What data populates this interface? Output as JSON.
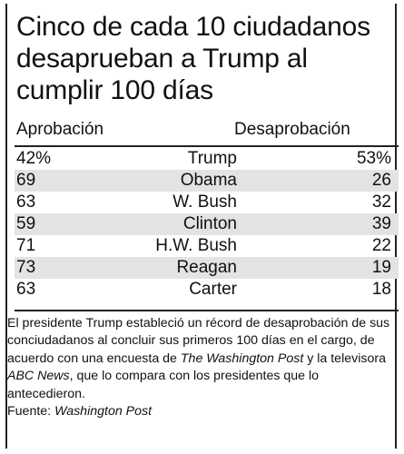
{
  "title": "Cinco de cada 10 ciudadanos desaprueban a Trump al cumplir 100 días",
  "headers": {
    "left": "Aprobación",
    "right": "Desaprobación"
  },
  "chart_data": {
    "type": "table",
    "title": "Cinco de cada 10 ciudadanos desaprueban a Trump al cumplir 100 días",
    "columns": [
      "Aprobación",
      "",
      "Desaprobación"
    ],
    "rows": [
      {
        "aprobacion": "42%",
        "presidente": "Trump",
        "desaprobacion": "53%"
      },
      {
        "aprobacion": "69",
        "presidente": "Obama",
        "desaprobacion": "26"
      },
      {
        "aprobacion": "63",
        "presidente": "W. Bush",
        "desaprobacion": "32"
      },
      {
        "aprobacion": "59",
        "presidente": "Clinton",
        "desaprobacion": "39"
      },
      {
        "aprobacion": "71",
        "presidente": "H.W. Bush",
        "desaprobacion": "22"
      },
      {
        "aprobacion": "73",
        "presidente": "Reagan",
        "desaprobacion": "19"
      },
      {
        "aprobacion": "63",
        "presidente": "Carter",
        "desaprobacion": "18"
      }
    ]
  },
  "note": {
    "part1": "El presidente Trump estableció un récord de desaprobación de sus conciudadanos al concluir sus primeros 100 días en el cargo, de acuerdo con una encuesta de ",
    "wp": "The Washington Post",
    "part2": " y la televisora ",
    "abc": "ABC News",
    "part3": ", que lo compara con los presidentes que lo antecedieron."
  },
  "source": {
    "label": "Fuente: ",
    "name": "Washington Post"
  }
}
